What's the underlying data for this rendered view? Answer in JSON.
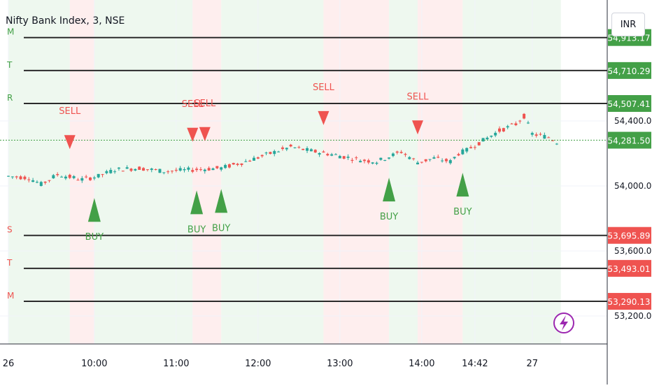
{
  "header": {
    "symbol_title": "Nifty Bank Index, 3, NSE",
    "currency": "INR"
  },
  "colors": {
    "up": "#26a69a",
    "down": "#ef5350",
    "buy": "#43a047",
    "sell": "#ef5350",
    "level_line": "#2b2b2b",
    "bg_green": "#e8f5e9",
    "bg_red": "#fde8e8",
    "lightning": "#9c27b0"
  },
  "chart_data": {
    "type": "candlestick",
    "x_tick_labels": [
      "26",
      "10:00",
      "11:00",
      "12:00",
      "13:00",
      "14:00",
      "14:42",
      "27"
    ],
    "x_tick_bars": [
      0,
      21,
      41,
      61,
      81,
      101,
      114,
      128
    ],
    "y_tick_labels": [
      "54,400.00",
      "54,000.00",
      "53,600.00",
      "53,200.00"
    ],
    "y_tick_values": [
      54400,
      54000,
      53600,
      53200
    ],
    "y_range": [
      53100,
      54900
    ],
    "current_price": "54,281.50",
    "current_price_value": 54281.5,
    "levels": [
      {
        "label": "M",
        "value": 54913.17,
        "price_text": "54,913.17",
        "side": "resistance"
      },
      {
        "label": "T",
        "value": 54710.29,
        "price_text": "54,710.29",
        "side": "resistance"
      },
      {
        "label": "R",
        "value": 54507.41,
        "price_text": "54,507.41",
        "side": "resistance"
      },
      {
        "label": "S",
        "value": 53695.89,
        "price_text": "53,695.89",
        "side": "support"
      },
      {
        "label": "T",
        "value": 53493.01,
        "price_text": "53,493.01",
        "side": "support"
      },
      {
        "label": "M",
        "value": 53290.13,
        "price_text": "53,290.13",
        "side": "support"
      }
    ],
    "signals": [
      {
        "type": "SELL",
        "label": "SELL",
        "bar": 15
      },
      {
        "type": "BUY",
        "label": "BUY",
        "bar": 21
      },
      {
        "type": "SELL",
        "label": "SELL",
        "bar": 45
      },
      {
        "type": "BUY",
        "label": "BUY",
        "bar": 46
      },
      {
        "type": "SELL",
        "label": "SELL",
        "bar": 48
      },
      {
        "type": "BUY",
        "label": "BUY",
        "bar": 52
      },
      {
        "type": "SELL",
        "label": "SELL",
        "bar": 77
      },
      {
        "type": "BUY",
        "label": "BUY",
        "bar": 93
      },
      {
        "type": "SELL",
        "label": "SELL",
        "bar": 100
      },
      {
        "type": "BUY",
        "label": "BUY",
        "bar": 111
      }
    ],
    "background_zones": [
      {
        "from": 0,
        "to": 15,
        "tone": "green"
      },
      {
        "from": 15,
        "to": 21,
        "tone": "red"
      },
      {
        "from": 21,
        "to": 45,
        "tone": "green"
      },
      {
        "from": 45,
        "to": 52,
        "tone": "red"
      },
      {
        "from": 52,
        "to": 77,
        "tone": "green"
      },
      {
        "from": 77,
        "to": 93,
        "tone": "red"
      },
      {
        "from": 93,
        "to": 100,
        "tone": "green"
      },
      {
        "from": 100,
        "to": 111,
        "tone": "red"
      },
      {
        "from": 111,
        "to": 135,
        "tone": "green"
      }
    ],
    "bars_total": 135,
    "ohlc_keypoints": [
      [
        0,
        54060
      ],
      [
        5,
        54050
      ],
      [
        8,
        54010
      ],
      [
        12,
        54070
      ],
      [
        18,
        54040
      ],
      [
        22,
        54060
      ],
      [
        26,
        54100
      ],
      [
        32,
        54110
      ],
      [
        38,
        54090
      ],
      [
        45,
        54100
      ],
      [
        52,
        54110
      ],
      [
        58,
        54150
      ],
      [
        64,
        54200
      ],
      [
        69,
        54240
      ],
      [
        74,
        54215
      ],
      [
        80,
        54190
      ],
      [
        86,
        54160
      ],
      [
        90,
        54150
      ],
      [
        93,
        54180
      ],
      [
        96,
        54210
      ],
      [
        100,
        54145
      ],
      [
        104,
        54170
      ],
      [
        108,
        54150
      ],
      [
        110,
        54200
      ],
      [
        112,
        54220
      ],
      [
        116,
        54280
      ],
      [
        120,
        54340
      ],
      [
        124,
        54380
      ],
      [
        126,
        54430
      ],
      [
        128,
        54320
      ],
      [
        132,
        54300
      ],
      [
        134,
        54270
      ]
    ]
  }
}
